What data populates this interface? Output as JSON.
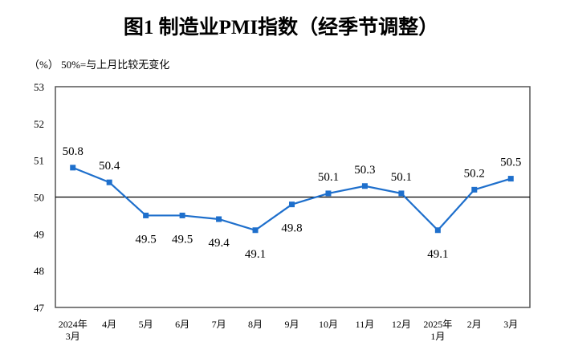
{
  "chart_data": {
    "type": "line",
    "title": "图1  制造业PMI指数（经季节调整）",
    "unit_note": "（%）  50%=与上月比较无变化",
    "categories": [
      [
        "2024年",
        "3月"
      ],
      [
        "4月"
      ],
      [
        "5月"
      ],
      [
        "6月"
      ],
      [
        "7月"
      ],
      [
        "8月"
      ],
      [
        "9月"
      ],
      [
        "10月"
      ],
      [
        "11月"
      ],
      [
        "12月"
      ],
      [
        "2025年",
        "1月"
      ],
      [
        "2月"
      ],
      [
        "3月"
      ]
    ],
    "values": [
      50.8,
      50.4,
      49.5,
      49.5,
      49.4,
      49.1,
      49.8,
      50.1,
      50.3,
      50.1,
      49.1,
      50.2,
      50.5
    ],
    "value_labels": [
      "50.8",
      "50.4",
      "49.5",
      "49.5",
      "49.4",
      "49.1",
      "49.8",
      "50.1",
      "50.3",
      "50.1",
      "49.1",
      "50.2",
      "50.5"
    ],
    "ylim": [
      47,
      53
    ],
    "yticks": [
      "47",
      "48",
      "49",
      "50",
      "51",
      "52",
      "53"
    ],
    "reference_line": 50,
    "grid": false,
    "marker": "square",
    "colors": {
      "series": "#1e6fcc",
      "axis": "#555555",
      "reference": "#000000"
    }
  }
}
